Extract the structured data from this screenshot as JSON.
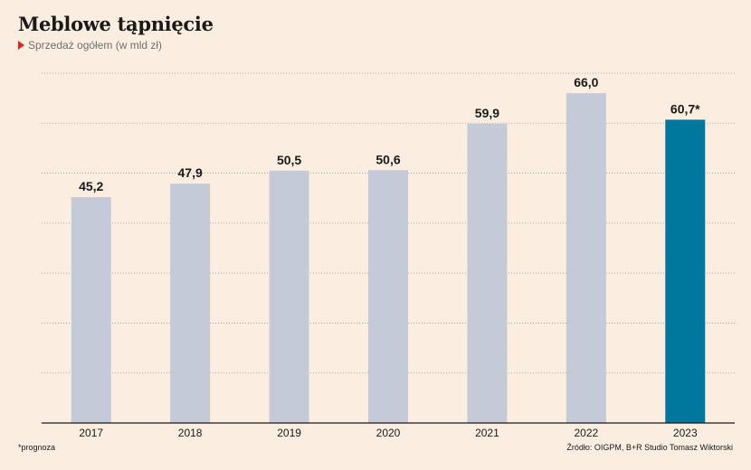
{
  "header": {
    "title": "Meblowe tąpnięcie",
    "subtitle": "Sprzedaż ogółem (w mld zł)"
  },
  "footer": {
    "footnote": "*prognoza",
    "source": "Źródło: OIGPM, B+R Studio Tomasz Wiktorski"
  },
  "colors": {
    "bar": "#c5cad8",
    "highlight_bar": "#00789e",
    "grid": "#9a9a9a",
    "axis": "#1a1a1a",
    "subtitle_marker": "#d9281c"
  },
  "chart_data": {
    "type": "bar",
    "categories": [
      "2017",
      "2018",
      "2019",
      "2020",
      "2021",
      "2022",
      "2023"
    ],
    "values": [
      45.2,
      47.9,
      50.5,
      50.6,
      59.9,
      66.0,
      60.7
    ],
    "value_labels": [
      "45,2",
      "47,9",
      "50,5",
      "50,6",
      "59,9",
      "66,0",
      "60,7*"
    ],
    "highlight_index": 6,
    "ylim": [
      0,
      70
    ],
    "grid_step": 10,
    "grid": true,
    "legend": "none"
  }
}
